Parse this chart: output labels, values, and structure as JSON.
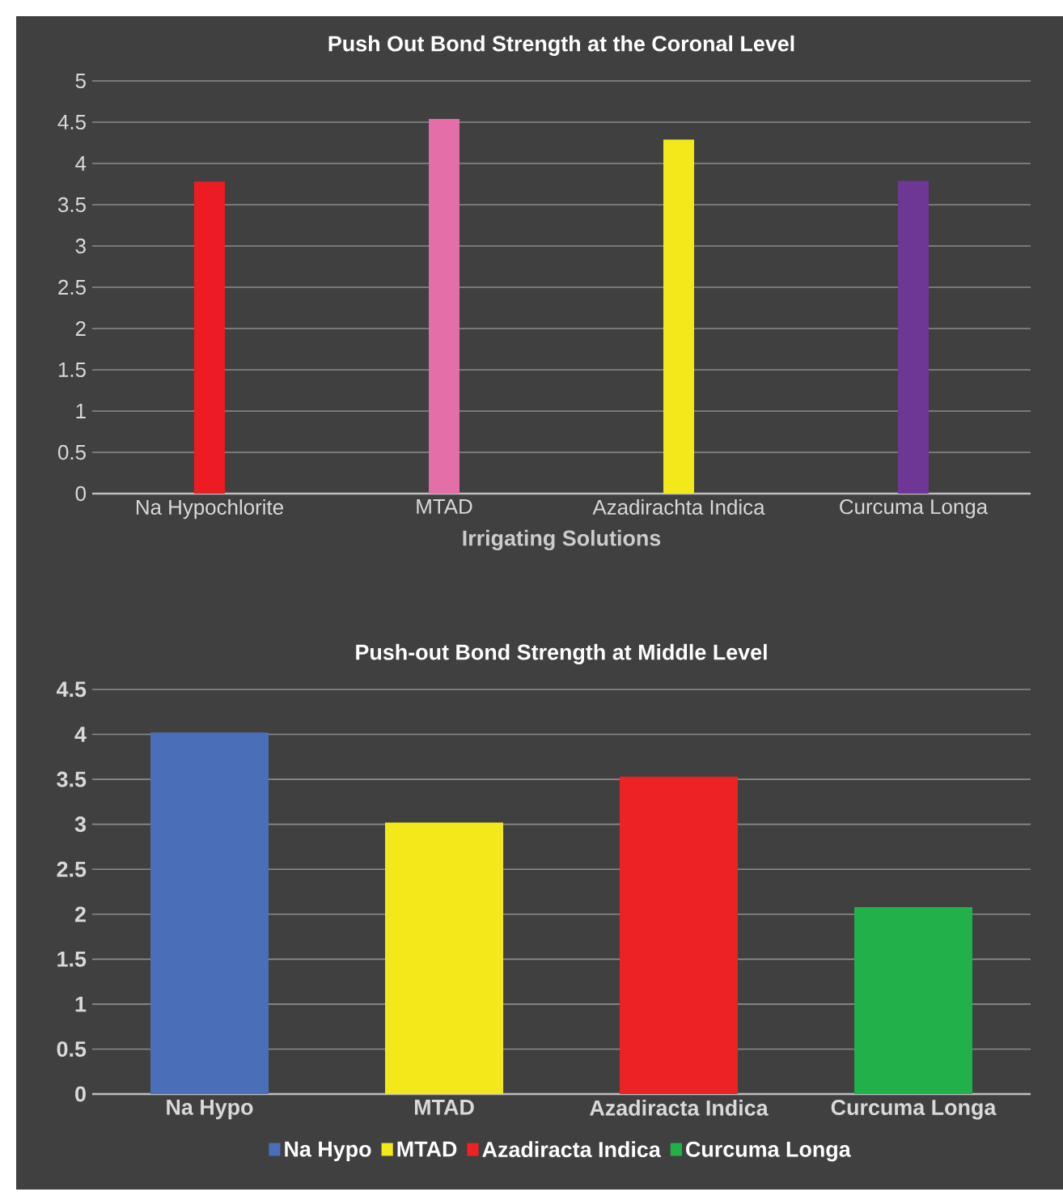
{
  "chart_data": [
    {
      "type": "bar",
      "title": "Push Out Bond Strength at the Coronal Level",
      "xlabel": "Irrigating Solutions",
      "categories": [
        "Na Hypochlorite",
        "MTAD",
        "Azadirachta Indica",
        "Curcuma Longa"
      ],
      "values": [
        3.78,
        4.54,
        4.29,
        3.79
      ],
      "colors": [
        "#ed1c24",
        "#e46ea8",
        "#f2e81a",
        "#6f3795"
      ],
      "ylim": [
        0,
        5
      ],
      "yticks": [
        0,
        0.5,
        1,
        1.5,
        2,
        2.5,
        3,
        3.5,
        4,
        4.5,
        5
      ],
      "grid": "y"
    },
    {
      "type": "bar",
      "title": "Push-out Bond Strength at Middle Level",
      "categories": [
        "Na Hypo",
        "MTAD",
        "Azadiracta Indica",
        "Curcuma Longa"
      ],
      "series": [
        {
          "name": "Na Hypo",
          "color": "#4a6fb8",
          "values": [
            4.02,
            null,
            null,
            null
          ]
        },
        {
          "name": "MTAD",
          "color": "#f2e81a",
          "values": [
            null,
            3.02,
            null,
            null
          ]
        },
        {
          "name": "Azadiracta Indica",
          "color": "#ed2224",
          "values": [
            null,
            null,
            3.53,
            null
          ]
        },
        {
          "name": "Curcuma Longa",
          "color": "#22b04b",
          "values": [
            null,
            null,
            null,
            2.08
          ]
        }
      ],
      "ylim": [
        0,
        4.5
      ],
      "yticks": [
        0,
        0.5,
        1,
        1.5,
        2,
        2.5,
        3,
        3.5,
        4,
        4.5
      ],
      "grid": "y",
      "legend": "bottom"
    }
  ]
}
